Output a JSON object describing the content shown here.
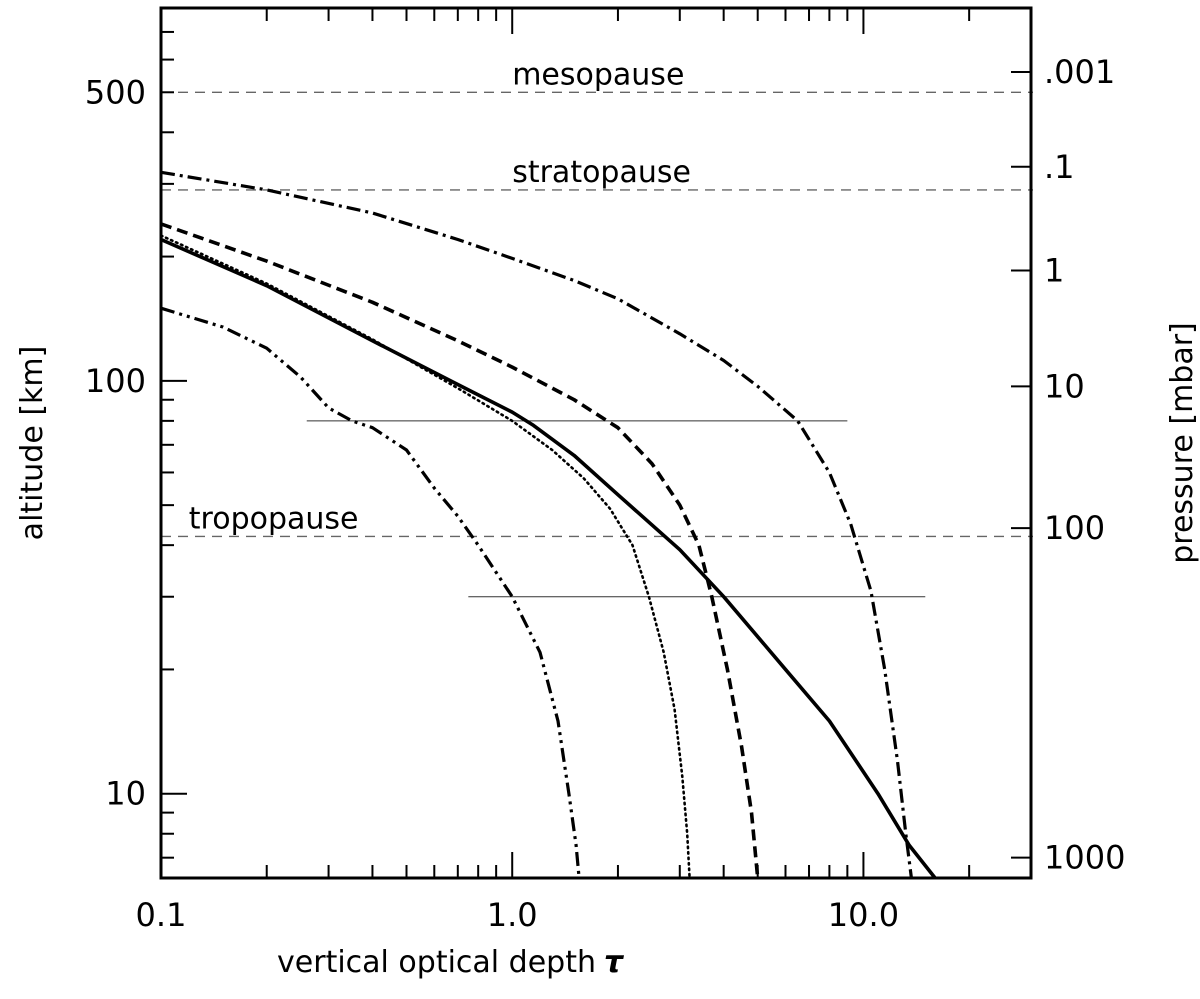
{
  "chart_data": {
    "type": "line",
    "xlabel": "vertical optical depth",
    "xlabel_symbol": "τ",
    "ylabel": "altitude [km]",
    "ylabel_right": "pressure [mbar]",
    "x_scale": "log",
    "y_scale": "log",
    "xlim": [
      0.1,
      30
    ],
    "ylim": [
      6.25,
      800
    ],
    "grid": false,
    "x_ticks": [
      {
        "value": 0.1,
        "label": "0.1"
      },
      {
        "value": 1.0,
        "label": "1.0"
      },
      {
        "value": 10.0,
        "label": "10.0"
      }
    ],
    "y_ticks": [
      {
        "value": 10,
        "label": "10"
      },
      {
        "value": 100,
        "label": "100"
      },
      {
        "value": 500,
        "label": "500"
      }
    ],
    "y_right_ticks": [
      {
        "altitude": 7,
        "label": "1000"
      },
      {
        "altitude": 44,
        "label": "100"
      },
      {
        "altitude": 97,
        "label": "10"
      },
      {
        "altitude": 185,
        "label": "1"
      },
      {
        "altitude": 330,
        "label": ".1"
      },
      {
        "altitude": 560,
        "label": ".001"
      }
    ],
    "reference_lines": [
      {
        "label": "mesopause",
        "y": 500,
        "style": "dashed"
      },
      {
        "label": "stratopause",
        "y": 290,
        "style": "dashed"
      },
      {
        "label": "tropopause",
        "y": 42,
        "style": "dashed"
      }
    ],
    "thin_lines": [
      {
        "y": 80,
        "x": [
          0.26,
          9.0
        ]
      },
      {
        "y": 30,
        "x": [
          0.75,
          15.0
        ]
      }
    ],
    "series": [
      {
        "style": "solid",
        "points": [
          [
            0.1,
            220
          ],
          [
            0.2,
            170
          ],
          [
            0.4,
            125
          ],
          [
            0.7,
            98
          ],
          [
            1.0,
            84
          ],
          [
            1.15,
            78
          ],
          [
            1.5,
            66
          ],
          [
            2.0,
            53
          ],
          [
            3.0,
            39
          ],
          [
            4.0,
            30
          ],
          [
            6.0,
            20
          ],
          [
            8.0,
            15
          ],
          [
            11.0,
            10
          ],
          [
            13.5,
            7.5
          ],
          [
            16.0,
            6.25
          ]
        ]
      },
      {
        "style": "dotted",
        "points": [
          [
            0.1,
            225
          ],
          [
            0.2,
            172
          ],
          [
            0.4,
            126
          ],
          [
            0.7,
            96
          ],
          [
            1.0,
            80
          ],
          [
            1.3,
            68
          ],
          [
            1.6,
            58
          ],
          [
            1.9,
            49
          ],
          [
            2.2,
            40
          ],
          [
            2.45,
            30
          ],
          [
            2.7,
            22
          ],
          [
            2.9,
            16
          ],
          [
            3.05,
            11
          ],
          [
            3.15,
            8
          ],
          [
            3.2,
            6.25
          ]
        ]
      },
      {
        "style": "dashed",
        "points": [
          [
            0.1,
            240
          ],
          [
            0.2,
            195
          ],
          [
            0.4,
            155
          ],
          [
            0.7,
            125
          ],
          [
            1.0,
            108
          ],
          [
            1.5,
            90
          ],
          [
            2.0,
            77
          ],
          [
            2.5,
            63
          ],
          [
            3.0,
            50
          ],
          [
            3.4,
            40
          ],
          [
            3.7,
            30
          ],
          [
            4.1,
            20
          ],
          [
            4.5,
            13
          ],
          [
            4.8,
            9
          ],
          [
            5.0,
            6.25
          ]
        ]
      },
      {
        "style": "dash-dot",
        "points": [
          [
            0.1,
            320
          ],
          [
            0.2,
            290
          ],
          [
            0.4,
            255
          ],
          [
            0.7,
            220
          ],
          [
            1.0,
            198
          ],
          [
            1.5,
            175
          ],
          [
            2.0,
            158
          ],
          [
            3.0,
            130
          ],
          [
            4.0,
            112
          ],
          [
            5.0,
            97
          ],
          [
            6.5,
            80
          ],
          [
            8.0,
            60
          ],
          [
            9.2,
            45
          ],
          [
            10.5,
            31
          ],
          [
            11.5,
            20
          ],
          [
            12.5,
            12
          ],
          [
            13.2,
            8
          ],
          [
            13.7,
            6.25
          ]
        ]
      },
      {
        "style": "dash-dot-dot",
        "points": [
          [
            0.1,
            150
          ],
          [
            0.15,
            135
          ],
          [
            0.2,
            120
          ],
          [
            0.25,
            102
          ],
          [
            0.3,
            86
          ],
          [
            0.35,
            80
          ],
          [
            0.4,
            77
          ],
          [
            0.5,
            68
          ],
          [
            0.6,
            55
          ],
          [
            0.7,
            47
          ],
          [
            0.8,
            40
          ],
          [
            1.0,
            30
          ],
          [
            1.2,
            22
          ],
          [
            1.35,
            15
          ],
          [
            1.45,
            10
          ],
          [
            1.52,
            7.5
          ],
          [
            1.55,
            6.25
          ]
        ]
      }
    ]
  }
}
